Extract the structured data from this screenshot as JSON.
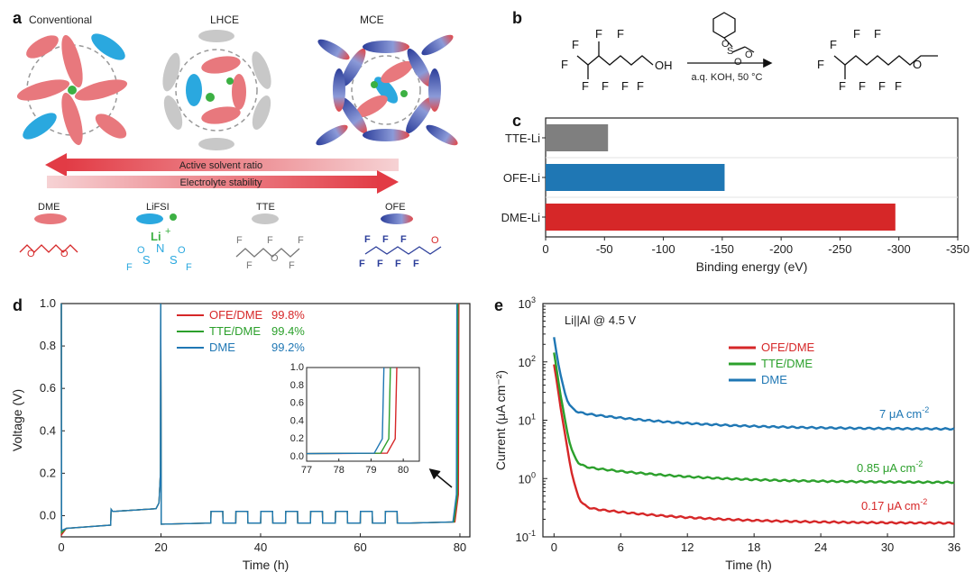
{
  "panels": {
    "a": {
      "letter": "a",
      "schemes": [
        {
          "label": "Conventional"
        },
        {
          "label": "LHCE"
        },
        {
          "label": "MCE"
        }
      ],
      "arrow_top": "Active solvent ratio",
      "arrow_bottom": "Electrolyte stability",
      "species": [
        {
          "label": "DME"
        },
        {
          "label": "LiFSI"
        },
        {
          "label": "TTE"
        },
        {
          "label": "OFE"
        }
      ],
      "li_label": "Li",
      "li_charge": "+",
      "atoms": {
        "O": "O",
        "F": "F",
        "S": "S",
        "N": "N"
      }
    },
    "b": {
      "letter": "b",
      "reagent_condition": "a.q. KOH, 50 °C",
      "atoms": {
        "F": "F",
        "OH": "OH",
        "O": "O",
        "S": "S"
      }
    },
    "c": {
      "letter": "c"
    },
    "d": {
      "letter": "d"
    },
    "e": {
      "letter": "e"
    }
  },
  "colors": {
    "red": "#d62728",
    "green": "#2ca02c",
    "blue": "#1f77b4",
    "gray": "#7f7f7f",
    "pink": "#e8787d",
    "cyan": "#2aa8df",
    "lightgray": "#c8c8c8",
    "navy": "#2c3e9a"
  },
  "chart_data": [
    {
      "panel": "c",
      "type": "bar",
      "orientation": "horizontal",
      "categories": [
        "TTE-Li",
        "OFE-Li",
        "DME-Li"
      ],
      "values": [
        -53,
        -152,
        -297
      ],
      "bar_colors": [
        "#7f7f7f",
        "#1f77b4",
        "#d62728"
      ],
      "xlabel": "Binding energy (eV)",
      "xlim": [
        0,
        -350
      ],
      "xticks": [
        0,
        -50,
        -100,
        -150,
        -200,
        -250,
        -300,
        -350
      ]
    },
    {
      "panel": "d",
      "type": "line",
      "xlabel": "Time (h)",
      "ylabel": "Voltage (V)",
      "xlim": [
        0,
        82
      ],
      "ylim": [
        -0.1,
        1.0
      ],
      "xticks": [
        0,
        20,
        40,
        60,
        80
      ],
      "yticks": [
        0.0,
        0.2,
        0.4,
        0.6,
        0.8,
        1.0
      ],
      "ytick_labels": [
        "0.0",
        "0.2",
        "0.4",
        "0.6",
        "0.8",
        "1.0"
      ],
      "series": [
        {
          "name": "OFE/DME",
          "efficiency": "99.8%",
          "color": "#d62728",
          "cutoff_h": 79.8
        },
        {
          "name": "TTE/DME",
          "efficiency": "99.4%",
          "color": "#2ca02c",
          "cutoff_h": 79.6
        },
        {
          "name": "DME",
          "efficiency": "99.2%",
          "color": "#1f77b4",
          "cutoff_h": 79.4
        }
      ],
      "inset": {
        "xlim": [
          77,
          80.5
        ],
        "ylim": [
          -0.05,
          1.0
        ],
        "xticks": [
          77,
          78,
          79,
          80
        ],
        "yticks": [
          0.0,
          0.2,
          0.4,
          0.6,
          0.8,
          1.0
        ],
        "ytick_labels": [
          "0.0",
          "0.2",
          "0.4",
          "0.6",
          "0.8",
          "1.0"
        ]
      }
    },
    {
      "panel": "e",
      "type": "line",
      "scale_y": "log",
      "annotation": "Li||Al @ 4.5 V",
      "xlabel": "Time (h)",
      "ylabel": "Current (μA cm⁻²)",
      "xlim": [
        -1,
        36
      ],
      "ylim": [
        0.1,
        1000
      ],
      "xticks": [
        0,
        6,
        12,
        18,
        24,
        30,
        36
      ],
      "yticks": [
        0.1,
        1,
        10,
        100,
        1000
      ],
      "ytick_labels": [
        [
          "10",
          "-1"
        ],
        [
          "10",
          "0"
        ],
        [
          "10",
          "1"
        ],
        [
          "10",
          "2"
        ],
        [
          "10",
          "3"
        ]
      ],
      "series": [
        {
          "name": "OFE/DME",
          "color": "#d62728",
          "start": 90,
          "end": 0.17,
          "end_label": "0.17 μA cm",
          "end_sup": "-2"
        },
        {
          "name": "TTE/DME",
          "color": "#2ca02c",
          "start": 140,
          "end": 0.85,
          "end_label": "0.85 μA cm",
          "end_sup": "-2"
        },
        {
          "name": "DME",
          "color": "#1f77b4",
          "start": 250,
          "end": 7,
          "end_label": "7 μA cm",
          "end_sup": "-2"
        }
      ]
    }
  ]
}
